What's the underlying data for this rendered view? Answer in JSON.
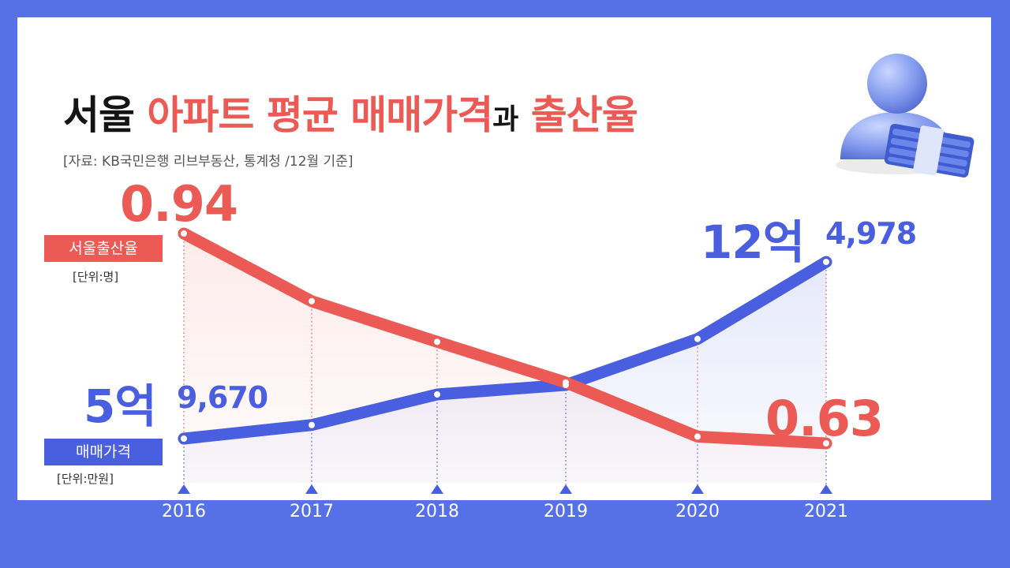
{
  "title": {
    "part1": "서울",
    "part2": "아파트 평균 매매가격",
    "part3": "과",
    "part4": "출산율"
  },
  "source": "[자료: KB국민은행 리브부동산, 통계청 /12월 기준]",
  "labels": {
    "birth_tag": "서울출산율",
    "birth_unit": "[단위:명]",
    "price_tag": "매매가격",
    "price_unit": "[단위:만원]",
    "birth_first": "0.94",
    "birth_last": "0.63",
    "price_first_big": "5억",
    "price_first_small": "9,670",
    "price_last_big": "12억",
    "price_last_small": "4,978"
  },
  "colors": {
    "red": "#eb5a55",
    "blue": "#4a5fdf",
    "frame": "#5670e8"
  },
  "icon": "person-with-money-icon",
  "chart_data": {
    "type": "line",
    "x": [
      "2016",
      "2017",
      "2018",
      "2019",
      "2020",
      "2021"
    ],
    "series": [
      {
        "name": "서울출산율",
        "unit": "명",
        "values": [
          0.94,
          0.84,
          0.78,
          0.72,
          0.64,
          0.63
        ]
      },
      {
        "name": "매매가격",
        "unit": "만원",
        "values": [
          59670,
          64700,
          76000,
          79500,
          96500,
          124978
        ]
      }
    ]
  }
}
